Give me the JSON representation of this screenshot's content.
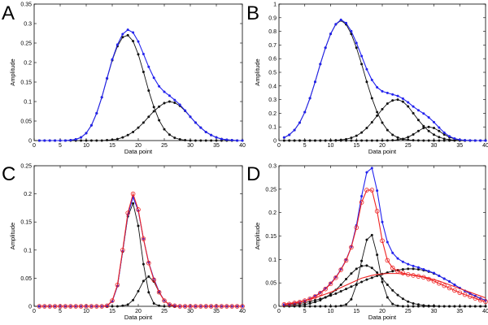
{
  "colors": {
    "sum": "#2222ee",
    "component": "#111111",
    "fit": "#ee2222",
    "fit_alt": "#cc1111",
    "grid_axes": "#000000"
  },
  "chart_data": [
    {
      "panel": "A",
      "type": "line",
      "xlabel": "Data point",
      "ylabel": "Amplitude",
      "xlim": [
        0,
        40
      ],
      "ylim": [
        0,
        0.35
      ],
      "xticks": [
        0,
        5,
        10,
        15,
        20,
        25,
        30,
        35,
        40
      ],
      "yticks": [
        0,
        0.05,
        0.1,
        0.15,
        0.2,
        0.25,
        0.3,
        0.35
      ],
      "xtick_labels": [
        "0",
        "5",
        "10",
        "15",
        "20",
        "25",
        "30",
        "35",
        "40"
      ],
      "ytick_labels": [
        "0",
        "0.05",
        "0.1",
        "0.15",
        "0.2",
        "0.25",
        "0.3",
        "0.35"
      ],
      "x": [
        1,
        2,
        3,
        4,
        5,
        6,
        7,
        8,
        9,
        10,
        11,
        12,
        13,
        14,
        15,
        16,
        17,
        18,
        19,
        20,
        21,
        22,
        23,
        24,
        25,
        26,
        27,
        28,
        29,
        30,
        31,
        32,
        33,
        34,
        35,
        36,
        37,
        38,
        39,
        40
      ],
      "series": [
        {
          "role": "component",
          "color": "#111111",
          "marker": "dot",
          "values": [
            0,
            0,
            0,
            0,
            0,
            0,
            0.001,
            0.003,
            0.008,
            0.019,
            0.039,
            0.07,
            0.111,
            0.159,
            0.206,
            0.242,
            0.265,
            0.27,
            0.255,
            0.221,
            0.176,
            0.128,
            0.086,
            0.052,
            0.029,
            0.015,
            0.007,
            0.003,
            0.001,
            0,
            0,
            0,
            0,
            0,
            0,
            0,
            0,
            0,
            0,
            0
          ]
        },
        {
          "role": "component",
          "color": "#111111",
          "marker": "dot",
          "values": [
            0,
            0,
            0,
            0,
            0,
            0,
            0,
            0,
            0,
            0,
            0,
            0,
            0,
            0.001,
            0.002,
            0.004,
            0.008,
            0.014,
            0.022,
            0.033,
            0.046,
            0.061,
            0.075,
            0.087,
            0.096,
            0.1,
            0.097,
            0.089,
            0.076,
            0.061,
            0.046,
            0.033,
            0.022,
            0.014,
            0.008,
            0.004,
            0.002,
            0.001,
            0,
            0
          ]
        },
        {
          "role": "sum",
          "color": "#2222ee",
          "marker": "dot",
          "values": [
            0,
            0,
            0,
            0,
            0,
            0,
            0.001,
            0.003,
            0.008,
            0.019,
            0.039,
            0.07,
            0.111,
            0.16,
            0.208,
            0.246,
            0.273,
            0.284,
            0.277,
            0.254,
            0.222,
            0.189,
            0.161,
            0.139,
            0.125,
            0.115,
            0.104,
            0.092,
            0.077,
            0.061,
            0.046,
            0.033,
            0.022,
            0.014,
            0.008,
            0.004,
            0.002,
            0.001,
            0,
            0
          ]
        }
      ]
    },
    {
      "panel": "B",
      "type": "line",
      "xlabel": "Data point",
      "ylabel": "Amplitude",
      "xlim": [
        0,
        40
      ],
      "ylim": [
        0,
        1
      ],
      "xticks": [
        0,
        5,
        10,
        15,
        20,
        25,
        30,
        35,
        40
      ],
      "yticks": [
        0,
        0.1,
        0.2,
        0.3,
        0.4,
        0.5,
        0.6,
        0.7,
        0.8,
        0.9,
        1
      ],
      "xtick_labels": [
        "0",
        "5",
        "10",
        "15",
        "20",
        "25",
        "30",
        "35",
        "40"
      ],
      "ytick_labels": [
        "0",
        "0.1",
        "0.2",
        "0.3",
        "0.4",
        "0.5",
        "0.6",
        "0.7",
        "0.8",
        "0.9",
        "1"
      ],
      "x": [
        1,
        2,
        3,
        4,
        5,
        6,
        7,
        8,
        9,
        10,
        11,
        12,
        13,
        14,
        15,
        16,
        17,
        18,
        19,
        20,
        21,
        22,
        23,
        24,
        25,
        26,
        27,
        28,
        29,
        30,
        31,
        32,
        33,
        34,
        35,
        36,
        37,
        38,
        39,
        40
      ],
      "series": [
        {
          "role": "component",
          "color": "#111111",
          "marker": "dot",
          "values": [
            0.022,
            0.042,
            0.077,
            0.131,
            0.208,
            0.31,
            0.43,
            0.56,
            0.68,
            0.781,
            0.851,
            0.88,
            0.851,
            0.781,
            0.68,
            0.56,
            0.43,
            0.31,
            0.208,
            0.131,
            0.077,
            0.042,
            0.022,
            0.01,
            0.005,
            0.002,
            0.001,
            0,
            0,
            0,
            0,
            0,
            0,
            0,
            0,
            0,
            0,
            0,
            0,
            0
          ]
        },
        {
          "role": "component",
          "color": "#111111",
          "marker": "dot",
          "values": [
            0,
            0,
            0,
            0,
            0,
            0,
            0,
            0,
            0,
            0.001,
            0.002,
            0.005,
            0.01,
            0.02,
            0.035,
            0.059,
            0.092,
            0.134,
            0.182,
            0.23,
            0.271,
            0.294,
            0.3,
            0.285,
            0.25,
            0.2,
            0.15,
            0.106,
            0.07,
            0.043,
            0.025,
            0.013,
            0.006,
            0.003,
            0.001,
            0,
            0,
            0,
            0,
            0
          ]
        },
        {
          "role": "component",
          "color": "#111111",
          "marker": "dot",
          "values": [
            0,
            0,
            0,
            0,
            0,
            0,
            0,
            0,
            0,
            0,
            0,
            0,
            0,
            0,
            0,
            0,
            0,
            0,
            0,
            0,
            0.001,
            0.002,
            0.005,
            0.012,
            0.025,
            0.045,
            0.07,
            0.092,
            0.1,
            0.092,
            0.07,
            0.045,
            0.025,
            0.012,
            0.005,
            0.002,
            0.001,
            0,
            0,
            0
          ]
        },
        {
          "role": "sum",
          "color": "#2222ee",
          "marker": "dot",
          "values": [
            0.022,
            0.042,
            0.077,
            0.131,
            0.208,
            0.31,
            0.43,
            0.56,
            0.68,
            0.782,
            0.853,
            0.885,
            0.861,
            0.801,
            0.715,
            0.619,
            0.522,
            0.444,
            0.39,
            0.361,
            0.349,
            0.338,
            0.327,
            0.307,
            0.28,
            0.249,
            0.222,
            0.198,
            0.17,
            0.135,
            0.095,
            0.058,
            0.031,
            0.015,
            0.006,
            0.002,
            0.001,
            0,
            0,
            0
          ]
        }
      ]
    },
    {
      "panel": "C",
      "type": "line",
      "xlabel": "Data point",
      "ylabel": "Amplitude",
      "xlim": [
        0,
        40
      ],
      "ylim": [
        0,
        0.25
      ],
      "xticks": [
        0,
        5,
        10,
        15,
        20,
        25,
        30,
        35,
        40
      ],
      "yticks": [
        0,
        0.05,
        0.1,
        0.15,
        0.2,
        0.25
      ],
      "xtick_labels": [
        "0",
        "5",
        "10",
        "15",
        "20",
        "25",
        "30",
        "35",
        "40"
      ],
      "ytick_labels": [
        "0",
        "0.05",
        "0.1",
        "0.15",
        "0.2",
        "0.25"
      ],
      "x": [
        1,
        2,
        3,
        4,
        5,
        6,
        7,
        8,
        9,
        10,
        11,
        12,
        13,
        14,
        15,
        16,
        17,
        18,
        19,
        20,
        21,
        22,
        23,
        24,
        25,
        26,
        27,
        28,
        29,
        30,
        31,
        32,
        33,
        34,
        35,
        36,
        37,
        38,
        39,
        40
      ],
      "series": [
        {
          "role": "component",
          "color": "#111111",
          "marker": "dot",
          "values": [
            0,
            0,
            0,
            0,
            0,
            0,
            0,
            0,
            0,
            0,
            0,
            0,
            0,
            0.001,
            0.009,
            0.036,
            0.097,
            0.16,
            0.183,
            0.143,
            0.075,
            0.025,
            0.005,
            0.001,
            0,
            0,
            0,
            0,
            0,
            0,
            0,
            0,
            0,
            0,
            0,
            0,
            0,
            0,
            0,
            0
          ]
        },
        {
          "role": "component",
          "color": "#111111",
          "marker": "dot",
          "values": [
            0,
            0,
            0,
            0,
            0,
            0,
            0,
            0,
            0,
            0,
            0,
            0,
            0,
            0,
            0,
            0,
            0.001,
            0.003,
            0.011,
            0.027,
            0.045,
            0.053,
            0.044,
            0.025,
            0.01,
            0.003,
            0.001,
            0,
            0,
            0,
            0,
            0,
            0,
            0,
            0,
            0,
            0,
            0,
            0,
            0
          ]
        },
        {
          "role": "sum",
          "color": "#2222ee",
          "marker": "dot",
          "values": [
            0,
            0,
            0,
            0,
            0,
            0,
            0,
            0,
            0,
            0,
            0,
            0,
            0,
            0.001,
            0.009,
            0.036,
            0.098,
            0.163,
            0.194,
            0.17,
            0.12,
            0.078,
            0.049,
            0.026,
            0.01,
            0.003,
            0.001,
            0,
            0,
            0,
            0,
            0,
            0,
            0,
            0,
            0,
            0,
            0,
            0,
            0
          ]
        },
        {
          "role": "fit",
          "color": "#ee2222",
          "marker": "circle",
          "values": [
            0,
            0,
            0,
            0,
            0,
            0,
            0,
            0,
            0,
            0,
            0,
            0,
            0,
            0.001,
            0.01,
            0.038,
            0.1,
            0.166,
            0.2,
            0.172,
            0.12,
            0.077,
            0.047,
            0.025,
            0.01,
            0.003,
            0.001,
            0,
            0,
            0,
            0,
            0,
            0,
            0,
            0,
            0,
            0,
            0,
            0,
            0
          ]
        }
      ]
    },
    {
      "panel": "D",
      "type": "line",
      "xlabel": "Data point",
      "ylabel": "Amplitude",
      "xlim": [
        0,
        40
      ],
      "ylim": [
        0,
        0.3
      ],
      "xticks": [
        0,
        5,
        10,
        15,
        20,
        25,
        30,
        35,
        40
      ],
      "yticks": [
        0,
        0.05,
        0.1,
        0.15,
        0.2,
        0.25,
        0.3
      ],
      "xtick_labels": [
        "0",
        "5",
        "10",
        "15",
        "20",
        "25",
        "30",
        "35",
        "40"
      ],
      "ytick_labels": [
        "0",
        "0.05",
        "0.1",
        "0.15",
        "0.2",
        "0.25",
        "0.3"
      ],
      "x": [
        1,
        2,
        3,
        4,
        5,
        6,
        7,
        8,
        9,
        10,
        11,
        12,
        13,
        14,
        15,
        16,
        17,
        18,
        19,
        20,
        21,
        22,
        23,
        24,
        25,
        26,
        27,
        28,
        29,
        30,
        31,
        32,
        33,
        34,
        35,
        36,
        37,
        38,
        39,
        40
      ],
      "series": [
        {
          "role": "component",
          "color": "#111111",
          "marker": "dot",
          "values": [
            0,
            0,
            0,
            0,
            0,
            0,
            0,
            0,
            0,
            0,
            0,
            0.001,
            0.004,
            0.015,
            0.046,
            0.097,
            0.142,
            0.152,
            0.11,
            0.052,
            0.019,
            0.005,
            0.001,
            0,
            0,
            0,
            0,
            0,
            0,
            0,
            0,
            0,
            0,
            0,
            0,
            0,
            0,
            0,
            0,
            0
          ]
        },
        {
          "role": "component",
          "color": "#111111",
          "marker": "dot",
          "values": [
            0.001,
            0.001,
            0.002,
            0.003,
            0.004,
            0.006,
            0.009,
            0.013,
            0.019,
            0.026,
            0.035,
            0.046,
            0.058,
            0.07,
            0.08,
            0.086,
            0.087,
            0.082,
            0.072,
            0.059,
            0.046,
            0.034,
            0.024,
            0.016,
            0.01,
            0.006,
            0.004,
            0.002,
            0.001,
            0.001,
            0,
            0,
            0,
            0,
            0,
            0,
            0,
            0,
            0,
            0
          ]
        },
        {
          "role": "component",
          "color": "#111111",
          "marker": "dot",
          "values": [
            0.003,
            0.004,
            0.005,
            0.006,
            0.008,
            0.01,
            0.013,
            0.016,
            0.019,
            0.023,
            0.027,
            0.032,
            0.037,
            0.042,
            0.047,
            0.052,
            0.057,
            0.061,
            0.065,
            0.069,
            0.072,
            0.075,
            0.077,
            0.079,
            0.08,
            0.08,
            0.079,
            0.077,
            0.074,
            0.07,
            0.065,
            0.059,
            0.053,
            0.046,
            0.039,
            0.033,
            0.027,
            0.022,
            0.017,
            0.013
          ]
        },
        {
          "role": "sum",
          "color": "#2222ee",
          "marker": "dot",
          "values": [
            0.004,
            0.005,
            0.007,
            0.009,
            0.012,
            0.016,
            0.022,
            0.029,
            0.038,
            0.049,
            0.062,
            0.079,
            0.099,
            0.127,
            0.173,
            0.235,
            0.286,
            0.295,
            0.247,
            0.18,
            0.137,
            0.114,
            0.102,
            0.095,
            0.09,
            0.086,
            0.083,
            0.079,
            0.075,
            0.071,
            0.065,
            0.059,
            0.053,
            0.046,
            0.039,
            0.033,
            0.027,
            0.022,
            0.017,
            0.013
          ]
        },
        {
          "role": "fit",
          "color": "#ee2222",
          "marker": "circle",
          "values": [
            0.004,
            0.005,
            0.007,
            0.009,
            0.012,
            0.016,
            0.021,
            0.028,
            0.037,
            0.048,
            0.061,
            0.078,
            0.098,
            0.126,
            0.168,
            0.222,
            0.248,
            0.248,
            0.203,
            0.14,
            0.098,
            0.082,
            0.075,
            0.071,
            0.068,
            0.066,
            0.064,
            0.062,
            0.058,
            0.054,
            0.049,
            0.044,
            0.039,
            0.034,
            0.029,
            0.025,
            0.021,
            0.017,
            0.013,
            0.01
          ]
        },
        {
          "role": "fit",
          "color": "#ee2222",
          "marker": "none",
          "values": [
            0.005,
            0.006,
            0.008,
            0.01,
            0.012,
            0.015,
            0.018,
            0.022,
            0.026,
            0.03,
            0.035,
            0.04,
            0.045,
            0.05,
            0.055,
            0.06,
            0.063,
            0.066,
            0.068,
            0.069,
            0.07,
            0.07,
            0.07,
            0.069,
            0.068,
            0.067,
            0.065,
            0.063,
            0.06,
            0.057,
            0.054,
            0.05,
            0.046,
            0.042,
            0.038,
            0.034,
            0.03,
            0.026,
            0.022,
            0.018
          ]
        }
      ]
    }
  ]
}
